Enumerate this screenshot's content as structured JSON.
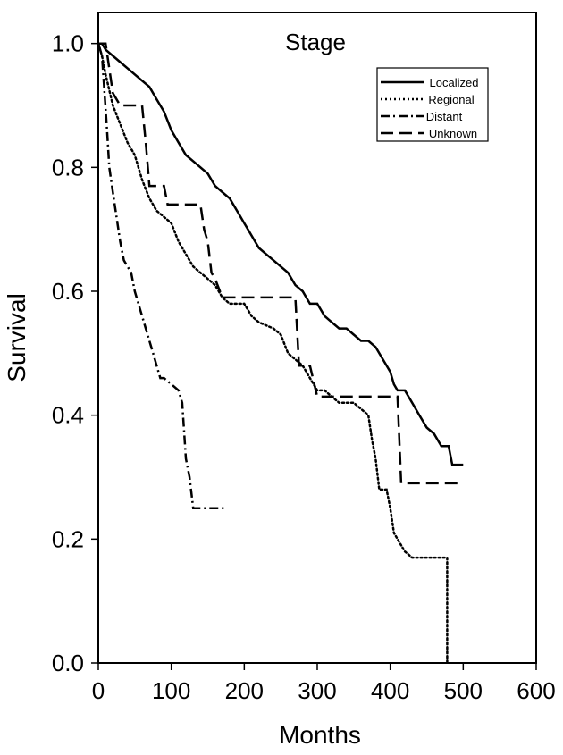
{
  "chart_data": {
    "type": "line",
    "title": "Stage",
    "xlabel": "Months",
    "ylabel": "Survival",
    "xlim": [
      0,
      600
    ],
    "ylim": [
      0.0,
      1.05
    ],
    "x_ticks": [
      0,
      100,
      200,
      300,
      400,
      500,
      600
    ],
    "y_ticks": [
      0.0,
      0.2,
      0.4,
      0.6,
      0.8,
      1.0
    ],
    "x_tick_labels": [
      "0",
      "100",
      "200",
      "300",
      "400",
      "500",
      "600"
    ],
    "y_tick_labels": [
      "0.0",
      "0.2",
      "0.4",
      "0.6",
      "0.8",
      "1.0"
    ],
    "grid": false,
    "legend_position": "top-right",
    "series": [
      {
        "name": "Localized",
        "style": "solid",
        "color": "#000000",
        "points": [
          [
            0,
            1.0
          ],
          [
            5,
            1.0
          ],
          [
            10,
            0.99
          ],
          [
            20,
            0.98
          ],
          [
            30,
            0.97
          ],
          [
            40,
            0.96
          ],
          [
            50,
            0.95
          ],
          [
            60,
            0.94
          ],
          [
            70,
            0.93
          ],
          [
            80,
            0.91
          ],
          [
            90,
            0.89
          ],
          [
            100,
            0.86
          ],
          [
            110,
            0.84
          ],
          [
            120,
            0.82
          ],
          [
            130,
            0.81
          ],
          [
            140,
            0.8
          ],
          [
            150,
            0.79
          ],
          [
            160,
            0.77
          ],
          [
            170,
            0.76
          ],
          [
            180,
            0.75
          ],
          [
            190,
            0.73
          ],
          [
            200,
            0.71
          ],
          [
            210,
            0.69
          ],
          [
            220,
            0.67
          ],
          [
            230,
            0.66
          ],
          [
            240,
            0.65
          ],
          [
            250,
            0.64
          ],
          [
            260,
            0.63
          ],
          [
            270,
            0.61
          ],
          [
            280,
            0.6
          ],
          [
            290,
            0.58
          ],
          [
            300,
            0.58
          ],
          [
            310,
            0.56
          ],
          [
            320,
            0.55
          ],
          [
            330,
            0.54
          ],
          [
            340,
            0.54
          ],
          [
            350,
            0.53
          ],
          [
            360,
            0.52
          ],
          [
            370,
            0.52
          ],
          [
            380,
            0.51
          ],
          [
            390,
            0.49
          ],
          [
            400,
            0.47
          ],
          [
            405,
            0.45
          ],
          [
            410,
            0.44
          ],
          [
            420,
            0.44
          ],
          [
            430,
            0.42
          ],
          [
            440,
            0.4
          ],
          [
            450,
            0.38
          ],
          [
            460,
            0.37
          ],
          [
            470,
            0.35
          ],
          [
            480,
            0.35
          ],
          [
            485,
            0.32
          ],
          [
            500,
            0.32
          ]
        ]
      },
      {
        "name": "Regional",
        "style": "dotted",
        "color": "#000000",
        "points": [
          [
            0,
            1.0
          ],
          [
            5,
            0.98
          ],
          [
            10,
            0.95
          ],
          [
            20,
            0.9
          ],
          [
            30,
            0.87
          ],
          [
            40,
            0.84
          ],
          [
            50,
            0.82
          ],
          [
            60,
            0.78
          ],
          [
            70,
            0.75
          ],
          [
            80,
            0.73
          ],
          [
            90,
            0.72
          ],
          [
            100,
            0.71
          ],
          [
            110,
            0.68
          ],
          [
            120,
            0.66
          ],
          [
            130,
            0.64
          ],
          [
            140,
            0.63
          ],
          [
            150,
            0.62
          ],
          [
            160,
            0.61
          ],
          [
            170,
            0.59
          ],
          [
            180,
            0.58
          ],
          [
            200,
            0.58
          ],
          [
            210,
            0.56
          ],
          [
            220,
            0.55
          ],
          [
            240,
            0.54
          ],
          [
            250,
            0.53
          ],
          [
            260,
            0.5
          ],
          [
            270,
            0.49
          ],
          [
            280,
            0.48
          ],
          [
            290,
            0.46
          ],
          [
            300,
            0.44
          ],
          [
            310,
            0.44
          ],
          [
            320,
            0.43
          ],
          [
            330,
            0.42
          ],
          [
            340,
            0.42
          ],
          [
            350,
            0.42
          ],
          [
            360,
            0.41
          ],
          [
            370,
            0.4
          ],
          [
            375,
            0.36
          ],
          [
            380,
            0.33
          ],
          [
            385,
            0.28
          ],
          [
            395,
            0.28
          ],
          [
            400,
            0.25
          ],
          [
            405,
            0.21
          ],
          [
            410,
            0.2
          ],
          [
            420,
            0.18
          ],
          [
            430,
            0.17
          ],
          [
            450,
            0.17
          ],
          [
            470,
            0.17
          ],
          [
            478,
            0.17
          ],
          [
            478,
            0.0
          ]
        ]
      },
      {
        "name": "Distant",
        "style": "dashdot",
        "color": "#000000",
        "points": [
          [
            0,
            1.0
          ],
          [
            5,
            0.98
          ],
          [
            8,
            0.93
          ],
          [
            12,
            0.86
          ],
          [
            15,
            0.8
          ],
          [
            20,
            0.76
          ],
          [
            25,
            0.72
          ],
          [
            30,
            0.68
          ],
          [
            35,
            0.65
          ],
          [
            40,
            0.64
          ],
          [
            45,
            0.63
          ],
          [
            50,
            0.6
          ],
          [
            55,
            0.58
          ],
          [
            60,
            0.56
          ],
          [
            65,
            0.54
          ],
          [
            70,
            0.52
          ],
          [
            75,
            0.5
          ],
          [
            80,
            0.48
          ],
          [
            85,
            0.46
          ],
          [
            90,
            0.46
          ],
          [
            100,
            0.45
          ],
          [
            110,
            0.44
          ],
          [
            115,
            0.42
          ],
          [
            120,
            0.33
          ],
          [
            125,
            0.3
          ],
          [
            130,
            0.25
          ],
          [
            150,
            0.25
          ],
          [
            175,
            0.25
          ]
        ]
      },
      {
        "name": "Unknown",
        "style": "dashed",
        "color": "#000000",
        "points": [
          [
            0,
            1.0
          ],
          [
            10,
            1.0
          ],
          [
            20,
            0.92
          ],
          [
            30,
            0.9
          ],
          [
            60,
            0.9
          ],
          [
            65,
            0.84
          ],
          [
            70,
            0.77
          ],
          [
            90,
            0.77
          ],
          [
            95,
            0.74
          ],
          [
            140,
            0.74
          ],
          [
            145,
            0.7
          ],
          [
            150,
            0.68
          ],
          [
            155,
            0.63
          ],
          [
            160,
            0.62
          ],
          [
            170,
            0.59
          ],
          [
            180,
            0.59
          ],
          [
            250,
            0.59
          ],
          [
            260,
            0.59
          ],
          [
            270,
            0.59
          ],
          [
            275,
            0.48
          ],
          [
            290,
            0.48
          ],
          [
            300,
            0.43
          ],
          [
            360,
            0.43
          ],
          [
            410,
            0.43
          ],
          [
            415,
            0.29
          ],
          [
            500,
            0.29
          ]
        ]
      }
    ]
  }
}
